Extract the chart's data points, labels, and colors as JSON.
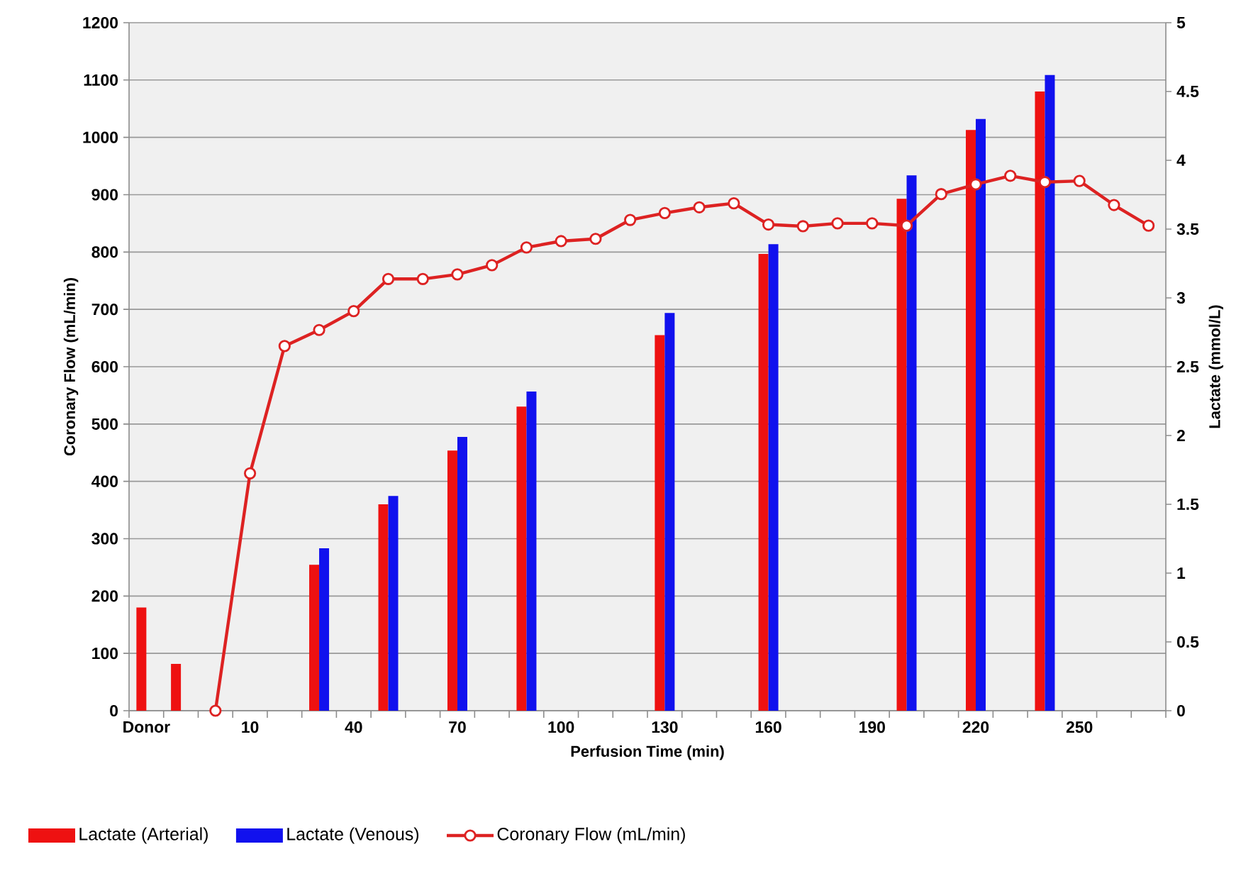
{
  "chart_data": {
    "type": "bar",
    "xlabel": "Perfusion Time (min)",
    "ylabel": "Coronary Flow (mL/min)",
    "y2label": "Lactate (mmol/L)",
    "categories": [
      "Donor",
      null,
      null,
      "10",
      null,
      null,
      "40",
      null,
      null,
      "70",
      null,
      null,
      "100",
      null,
      null,
      "130",
      null,
      null,
      "160",
      null,
      null,
      "190",
      null,
      null,
      "220",
      null,
      null,
      "250",
      null,
      null
    ],
    "series": [
      {
        "name": "Lactate (Arterial)",
        "axis": "y2",
        "color": "#ee1111",
        "values": [
          0.75,
          0.34,
          null,
          null,
          null,
          1.06,
          null,
          1.5,
          null,
          1.89,
          null,
          2.21,
          null,
          null,
          null,
          2.73,
          null,
          null,
          3.32,
          null,
          null,
          null,
          3.72,
          null,
          4.22,
          null,
          4.5,
          null,
          null,
          null
        ]
      },
      {
        "name": "Lactate (Venous)",
        "axis": "y2",
        "color": "#1111ee",
        "values": [
          null,
          null,
          null,
          null,
          null,
          1.18,
          null,
          1.56,
          null,
          1.99,
          null,
          2.32,
          null,
          null,
          null,
          2.89,
          null,
          null,
          3.39,
          null,
          null,
          null,
          3.89,
          null,
          4.3,
          null,
          4.62,
          null,
          null,
          null
        ]
      },
      {
        "name": "Coronary Flow (mL/min)",
        "type": "line",
        "marker": "circle",
        "color": "#dd2222",
        "values": [
          null,
          null,
          0,
          414,
          636,
          664,
          697,
          753,
          753,
          761,
          777,
          808,
          819,
          823,
          856,
          868,
          878,
          885,
          848,
          845,
          850,
          850,
          846,
          901,
          918,
          933,
          922,
          924,
          882,
          846
        ]
      }
    ],
    "ylim": [
      0,
      1200
    ],
    "yticks": [
      0,
      100,
      200,
      300,
      400,
      500,
      600,
      700,
      800,
      900,
      1000,
      1100,
      1200
    ],
    "y2lim": [
      0,
      5
    ],
    "y2ticks": [
      0,
      0.5,
      1,
      1.5,
      2,
      2.5,
      3,
      3.5,
      4,
      4.5,
      5
    ],
    "grid": "y",
    "legend": "bottom"
  }
}
